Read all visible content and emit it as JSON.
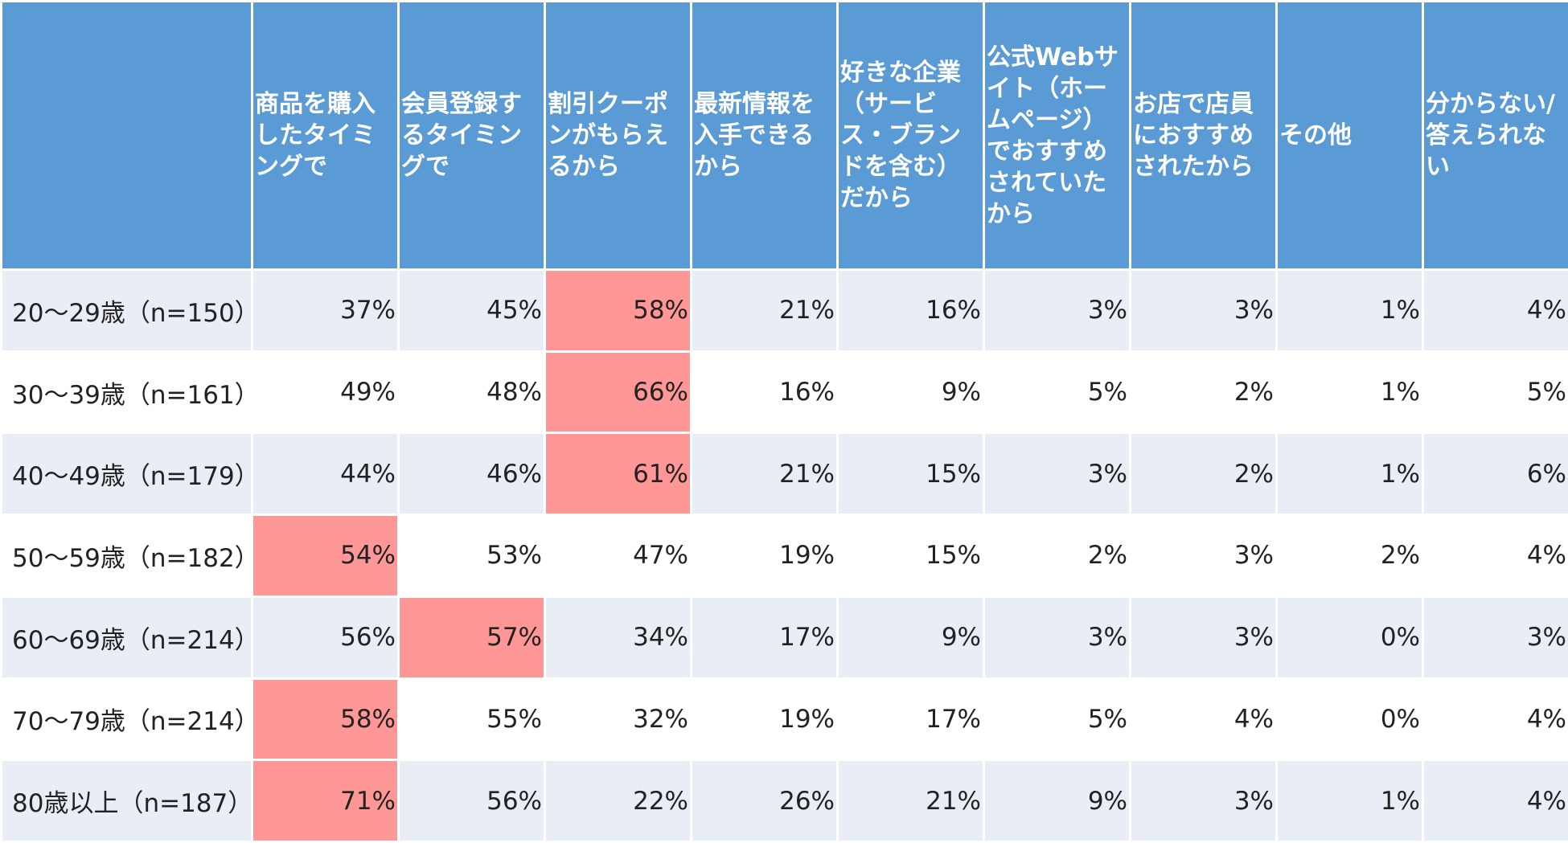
{
  "chart_data": {
    "type": "table",
    "columns": [
      "",
      "商品を購入したタイミングで",
      "会員登録するタイミングで",
      "割引クーポンがもらえるから",
      "最新情報を入手できるから",
      "好きな企業（サービス・ブランドを含む）だから",
      "公式Webサイト（ホームページ）でおすすめされていたから",
      "お店で店員におすすめされたから",
      "その他",
      "分からない/答えられない"
    ],
    "rows": [
      {
        "label": "20～29歳（n=150）",
        "values": [
          "37%",
          "45%",
          "58%",
          "21%",
          "16%",
          "3%",
          "3%",
          "1%",
          "4%"
        ],
        "highlight": [
          2
        ]
      },
      {
        "label": "30～39歳（n=161）",
        "values": [
          "49%",
          "48%",
          "66%",
          "16%",
          "9%",
          "5%",
          "2%",
          "1%",
          "5%"
        ],
        "highlight": [
          2
        ]
      },
      {
        "label": "40～49歳（n=179）",
        "values": [
          "44%",
          "46%",
          "61%",
          "21%",
          "15%",
          "3%",
          "2%",
          "1%",
          "6%"
        ],
        "highlight": [
          2
        ]
      },
      {
        "label": "50～59歳（n=182）",
        "values": [
          "54%",
          "53%",
          "47%",
          "19%",
          "15%",
          "2%",
          "3%",
          "2%",
          "4%"
        ],
        "highlight": [
          0
        ]
      },
      {
        "label": "60～69歳（n=214）",
        "values": [
          "56%",
          "57%",
          "34%",
          "17%",
          "9%",
          "3%",
          "3%",
          "0%",
          "3%"
        ],
        "highlight": [
          1
        ]
      },
      {
        "label": "70～79歳（n=214）",
        "values": [
          "58%",
          "55%",
          "32%",
          "19%",
          "17%",
          "5%",
          "4%",
          "0%",
          "4%"
        ],
        "highlight": [
          0
        ]
      },
      {
        "label": "80歳以上（n=187）",
        "values": [
          "71%",
          "56%",
          "22%",
          "26%",
          "21%",
          "9%",
          "3%",
          "1%",
          "4%"
        ],
        "highlight": [
          0
        ]
      }
    ]
  },
  "colors": {
    "header_bg": "#5b9bd5",
    "header_text": "#ffffff",
    "row_band": "#e9edf5",
    "row_plain": "#ffffff",
    "highlight": "#ff9797"
  }
}
